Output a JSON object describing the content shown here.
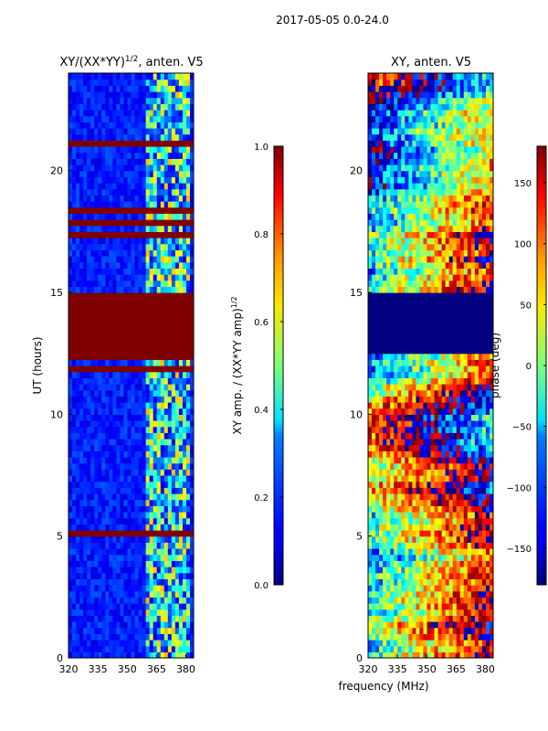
{
  "figure": {
    "suptitle": "2017-05-05 0.0-24.0",
    "xlabel_shared": "frequency (MHz)"
  },
  "chart_data": [
    {
      "type": "heatmap",
      "title_prefix": "XY/(XX*YY)",
      "title_sup": "1/2",
      "title_suffix": ", anten. V5",
      "xlabel": "frequency (MHz)",
      "ylabel": "UT (hours)",
      "xlim": [
        320,
        384
      ],
      "ylim": [
        0,
        24
      ],
      "x_ticks": [
        320,
        335,
        350,
        365,
        380
      ],
      "y_ticks": [
        0,
        5,
        10,
        15,
        20
      ],
      "colorbar": {
        "label_prefix": "XY amp. / (XX*YY amp)",
        "label_sup": "1/2",
        "min": 0.0,
        "max": 1.0,
        "ticks": [
          "0.0",
          "0.2",
          "0.4",
          "0.6",
          "0.8",
          "1.0"
        ],
        "tick_values": [
          0.0,
          0.2,
          0.4,
          0.6,
          0.8,
          1.0
        ]
      },
      "blank_band_hours": [
        12.6,
        15.0
      ],
      "blank_value": 1.0,
      "bright_channel_range_mhz": [
        360,
        382
      ],
      "typical_value": 0.15
    },
    {
      "type": "heatmap",
      "title": "XY, anten. V5",
      "xlabel": "frequency (MHz)",
      "ylabel": "",
      "xlim": [
        320,
        384
      ],
      "ylim": [
        0,
        24
      ],
      "x_ticks": [
        320,
        335,
        350,
        365,
        380
      ],
      "y_ticks": [
        0,
        5,
        10,
        15,
        20
      ],
      "colorbar": {
        "label": "phase (deg)",
        "min": -180,
        "max": 180,
        "ticks": [
          "−150",
          "−100",
          "−50",
          "0",
          "50",
          "100",
          "150"
        ],
        "tick_values": [
          -150,
          -100,
          -50,
          0,
          50,
          100,
          150
        ]
      },
      "blank_band_hours": [
        12.6,
        15.0
      ],
      "blank_value": -180
    }
  ],
  "colors": {
    "jet_dark_red": "#800000",
    "jet_dark_blue": "#00007f",
    "axis": "#000000"
  }
}
